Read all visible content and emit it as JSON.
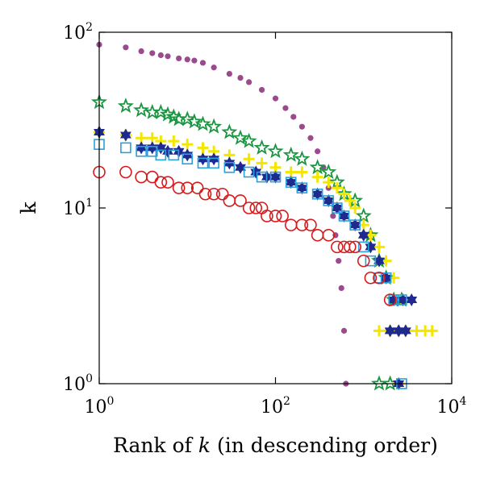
{
  "chart_data": {
    "type": "scatter",
    "title": "",
    "xlabel": {
      "prefix": "Rank of ",
      "var": "k",
      "suffix": " (in descending order)"
    },
    "ylabel": "k",
    "xscale": "log",
    "yscale": "log",
    "xlim": [
      1,
      10000
    ],
    "ylim": [
      1,
      100
    ],
    "grid": false,
    "legend": "none",
    "xticks": [
      {
        "value": 1,
        "base": "10",
        "exp": "0"
      },
      {
        "value": 100,
        "base": "10",
        "exp": "2"
      },
      {
        "value": 10000,
        "base": "10",
        "exp": "4"
      }
    ],
    "yticks": [
      {
        "value": 1,
        "base": "10",
        "exp": "0"
      },
      {
        "value": 10,
        "base": "10",
        "exp": "1"
      },
      {
        "value": 100,
        "base": "10",
        "exp": "2"
      }
    ],
    "series": [
      {
        "marker": "circle-filled",
        "color": "#9c4a8e",
        "points": [
          [
            1,
            85
          ],
          [
            2,
            82
          ],
          [
            3,
            78
          ],
          [
            4,
            76
          ],
          [
            5,
            74
          ],
          [
            6,
            73
          ],
          [
            8,
            71
          ],
          [
            10,
            70
          ],
          [
            12,
            69
          ],
          [
            15,
            67
          ],
          [
            20,
            63
          ],
          [
            30,
            58
          ],
          [
            40,
            55
          ],
          [
            50,
            52
          ],
          [
            70,
            47
          ],
          [
            100,
            42
          ],
          [
            130,
            37
          ],
          [
            160,
            33
          ],
          [
            200,
            29
          ],
          [
            250,
            25
          ],
          [
            300,
            21
          ],
          [
            350,
            17
          ],
          [
            400,
            13
          ],
          [
            450,
            9
          ],
          [
            480,
            7
          ],
          [
            520,
            5
          ],
          [
            560,
            3.5
          ],
          [
            600,
            2
          ],
          [
            630,
            1
          ]
        ]
      },
      {
        "marker": "star",
        "color": "#1a9641",
        "points": [
          [
            1,
            40
          ],
          [
            2,
            38
          ],
          [
            3,
            36
          ],
          [
            4,
            35
          ],
          [
            5,
            35
          ],
          [
            6,
            34
          ],
          [
            7,
            33
          ],
          [
            8,
            32
          ],
          [
            10,
            32
          ],
          [
            12,
            31
          ],
          [
            15,
            30
          ],
          [
            20,
            29
          ],
          [
            30,
            27
          ],
          [
            40,
            25
          ],
          [
            50,
            24
          ],
          [
            70,
            22
          ],
          [
            100,
            21
          ],
          [
            150,
            20
          ],
          [
            200,
            19
          ],
          [
            300,
            17
          ],
          [
            400,
            16
          ],
          [
            500,
            14
          ],
          [
            600,
            12
          ],
          [
            800,
            11
          ],
          [
            1000,
            9
          ],
          [
            1200,
            7
          ],
          [
            1500,
            5
          ],
          [
            1800,
            4
          ],
          [
            2200,
            3
          ],
          [
            2700,
            3
          ],
          [
            1500,
            1
          ],
          [
            2000,
            1
          ]
        ]
      },
      {
        "marker": "plus",
        "color": "#f5e600",
        "points": [
          [
            1,
            27
          ],
          [
            2,
            26
          ],
          [
            3,
            25
          ],
          [
            4,
            25
          ],
          [
            5,
            24
          ],
          [
            7,
            24
          ],
          [
            10,
            23
          ],
          [
            15,
            22
          ],
          [
            20,
            21
          ],
          [
            30,
            20
          ],
          [
            50,
            19
          ],
          [
            70,
            18
          ],
          [
            100,
            17
          ],
          [
            150,
            16
          ],
          [
            200,
            16
          ],
          [
            300,
            15
          ],
          [
            400,
            14
          ],
          [
            500,
            13
          ],
          [
            600,
            12
          ],
          [
            700,
            11
          ],
          [
            800,
            10
          ],
          [
            1000,
            8
          ],
          [
            1200,
            7
          ],
          [
            1500,
            6
          ],
          [
            1800,
            5
          ],
          [
            2200,
            4
          ],
          [
            2700,
            3
          ],
          [
            1500,
            2
          ],
          [
            2000,
            2
          ],
          [
            2500,
            2
          ],
          [
            3000,
            2
          ],
          [
            4000,
            2
          ],
          [
            5000,
            2
          ],
          [
            6000,
            2
          ],
          [
            2500,
            1
          ]
        ]
      },
      {
        "marker": "hexagram-filled",
        "color": "#1f2a8f",
        "points": [
          [
            1,
            27
          ],
          [
            2,
            26
          ],
          [
            3,
            22
          ],
          [
            4,
            22
          ],
          [
            5,
            22
          ],
          [
            6,
            21
          ],
          [
            8,
            21
          ],
          [
            10,
            20
          ],
          [
            15,
            19
          ],
          [
            20,
            19
          ],
          [
            30,
            18
          ],
          [
            40,
            17
          ],
          [
            60,
            16
          ],
          [
            80,
            15
          ],
          [
            100,
            15
          ],
          [
            150,
            14
          ],
          [
            200,
            13
          ],
          [
            300,
            12
          ],
          [
            400,
            11
          ],
          [
            500,
            10
          ],
          [
            600,
            9
          ],
          [
            800,
            8
          ],
          [
            1000,
            7
          ],
          [
            1200,
            6
          ],
          [
            1500,
            5
          ],
          [
            1800,
            4
          ],
          [
            2200,
            3
          ],
          [
            2800,
            3
          ],
          [
            3500,
            3
          ],
          [
            2000,
            2
          ],
          [
            2500,
            2
          ],
          [
            3000,
            2
          ],
          [
            2500,
            1
          ]
        ]
      },
      {
        "marker": "square-open",
        "color": "#2a9fdc",
        "points": [
          [
            1,
            23
          ],
          [
            2,
            22
          ],
          [
            3,
            21
          ],
          [
            4,
            21
          ],
          [
            5,
            20
          ],
          [
            7,
            20
          ],
          [
            10,
            19
          ],
          [
            15,
            18
          ],
          [
            20,
            18
          ],
          [
            30,
            17
          ],
          [
            50,
            16
          ],
          [
            70,
            15
          ],
          [
            100,
            15
          ],
          [
            150,
            14
          ],
          [
            200,
            13
          ],
          [
            300,
            12
          ],
          [
            400,
            11
          ],
          [
            500,
            10
          ],
          [
            600,
            9
          ],
          [
            800,
            8
          ],
          [
            1000,
            6
          ],
          [
            1200,
            5
          ],
          [
            1500,
            4
          ],
          [
            1800,
            4
          ],
          [
            2200,
            3
          ],
          [
            2700,
            3
          ],
          [
            2700,
            1
          ]
        ]
      },
      {
        "marker": "circle-open",
        "color": "#d7191c",
        "points": [
          [
            1,
            16
          ],
          [
            2,
            16
          ],
          [
            3,
            15
          ],
          [
            4,
            15
          ],
          [
            5,
            14
          ],
          [
            6,
            14
          ],
          [
            8,
            13
          ],
          [
            10,
            13
          ],
          [
            13,
            13
          ],
          [
            16,
            12
          ],
          [
            20,
            12
          ],
          [
            25,
            12
          ],
          [
            30,
            11
          ],
          [
            40,
            11
          ],
          [
            50,
            10
          ],
          [
            60,
            10
          ],
          [
            70,
            10
          ],
          [
            80,
            9
          ],
          [
            100,
            9
          ],
          [
            120,
            9
          ],
          [
            150,
            8
          ],
          [
            200,
            8
          ],
          [
            250,
            8
          ],
          [
            300,
            7
          ],
          [
            400,
            7
          ],
          [
            500,
            6
          ],
          [
            600,
            6
          ],
          [
            700,
            6
          ],
          [
            800,
            6
          ],
          [
            1000,
            5
          ],
          [
            1200,
            4
          ],
          [
            1500,
            4
          ],
          [
            2000,
            3
          ]
        ]
      }
    ]
  }
}
